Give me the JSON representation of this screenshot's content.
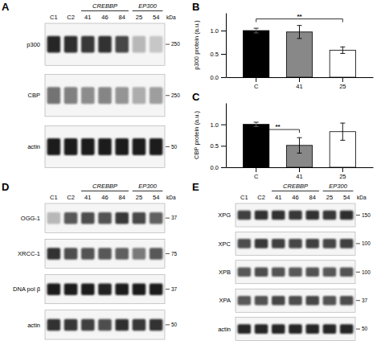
{
  "chart_data": [
    {
      "type": "blot",
      "title": "A",
      "categories": [
        "C1",
        "C2",
        "41",
        "46",
        "84",
        "25",
        "54"
      ],
      "groups": [
        {
          "label": "CREBBP",
          "categories": [
            "41",
            "46",
            "84"
          ]
        },
        {
          "label": "EP300",
          "categories": [
            "25",
            "54"
          ]
        }
      ],
      "unit_label": "kDa",
      "rows": [
        {
          "name": "p300",
          "kda": 250,
          "values": [
            0.15,
            0.18,
            0.22,
            0.2,
            0.28,
            0.72,
            0.78
          ]
        },
        {
          "name": "CBP",
          "kda": 250,
          "values": [
            0.45,
            0.5,
            0.55,
            0.52,
            0.58,
            0.68,
            0.62
          ]
        },
        {
          "name": "actin",
          "kda": 50,
          "values": [
            0.1,
            0.1,
            0.1,
            0.1,
            0.1,
            0.12,
            0.12
          ]
        }
      ]
    },
    {
      "type": "bar",
      "title": "B",
      "ylabel": "p300 protein (a.u.)",
      "categories": [
        "C",
        "41",
        "25"
      ],
      "values": [
        1.0,
        0.97,
        0.58
      ],
      "errors": [
        0.05,
        0.14,
        0.07
      ],
      "colors": [
        "#000000",
        "#888888",
        "#ffffff"
      ],
      "ylim": [
        0.0,
        1.38
      ],
      "yticks": [
        {
          "value": 0.0,
          "label": "0.0"
        },
        {
          "value": 0.5,
          "label": "0.5"
        },
        {
          "value": 1.0,
          "label": "1.0"
        }
      ],
      "annotations": [
        {
          "label": "**",
          "from": "C",
          "to": "25",
          "y": 1.25
        }
      ]
    },
    {
      "type": "bar",
      "title": "C",
      "ylabel": "CBP protein (a.u.)",
      "categories": [
        "C",
        "41",
        "25"
      ],
      "values": [
        1.0,
        0.51,
        0.83
      ],
      "errors": [
        0.05,
        0.18,
        0.2
      ],
      "colors": [
        "#000000",
        "#888888",
        "#ffffff"
      ],
      "ylim": [
        0.0,
        1.5
      ],
      "yticks": [
        {
          "value": 0.0,
          "label": "0.0"
        },
        {
          "value": 0.5,
          "label": "0.5"
        },
        {
          "value": 1.0,
          "label": "1.0"
        }
      ],
      "annotations": [
        {
          "label": "**",
          "from": "C",
          "to": "41",
          "y": 0.88
        }
      ]
    },
    {
      "type": "blot",
      "title": "D",
      "categories": [
        "C1",
        "C2",
        "41",
        "46",
        "84",
        "25",
        "54"
      ],
      "groups": [
        {
          "label": "CREBBP",
          "categories": [
            "41",
            "46",
            "84"
          ]
        },
        {
          "label": "EP300",
          "categories": [
            "25",
            "54"
          ]
        }
      ],
      "unit_label": "kDa",
      "rows": [
        {
          "name": "OGG-1",
          "kda": 37,
          "values": [
            0.72,
            0.35,
            0.3,
            0.32,
            0.22,
            0.28,
            0.38
          ]
        },
        {
          "name": "XRCC-1",
          "kda": 75,
          "values": [
            0.2,
            0.3,
            0.32,
            0.35,
            0.38,
            0.48,
            0.35
          ]
        },
        {
          "name": "DNA pol β",
          "kda": 37,
          "values": [
            0.1,
            0.12,
            0.12,
            0.14,
            0.1,
            0.12,
            0.12
          ]
        },
        {
          "name": "actin",
          "kda": 50,
          "values": [
            0.2,
            0.22,
            0.25,
            0.3,
            0.18,
            0.22,
            0.2
          ]
        }
      ]
    },
    {
      "type": "blot",
      "title": "E",
      "categories": [
        "C1",
        "C2",
        "41",
        "46",
        "84",
        "25",
        "54"
      ],
      "groups": [
        {
          "label": "CREBBP",
          "categories": [
            "41",
            "46",
            "84"
          ]
        },
        {
          "label": "EP300",
          "categories": [
            "25",
            "54"
          ]
        }
      ],
      "unit_label": "kDa",
      "rows": [
        {
          "name": "XPG",
          "kda": 150,
          "values": [
            0.25,
            0.2,
            0.2,
            0.22,
            0.2,
            0.22,
            0.18
          ]
        },
        {
          "name": "XPC",
          "kda": 100,
          "values": [
            0.3,
            0.22,
            0.25,
            0.28,
            0.25,
            0.28,
            0.25
          ]
        },
        {
          "name": "XPB",
          "kda": 100,
          "values": [
            0.35,
            0.3,
            0.32,
            0.35,
            0.32,
            0.35,
            0.32
          ]
        },
        {
          "name": "XPA",
          "kda": 37,
          "values": [
            0.35,
            0.32,
            0.28,
            0.3,
            0.28,
            0.32,
            0.3
          ]
        },
        {
          "name": "actin",
          "kda": 50,
          "values": [
            0.15,
            0.15,
            0.15,
            0.15,
            0.15,
            0.15,
            0.15
          ]
        }
      ]
    }
  ]
}
